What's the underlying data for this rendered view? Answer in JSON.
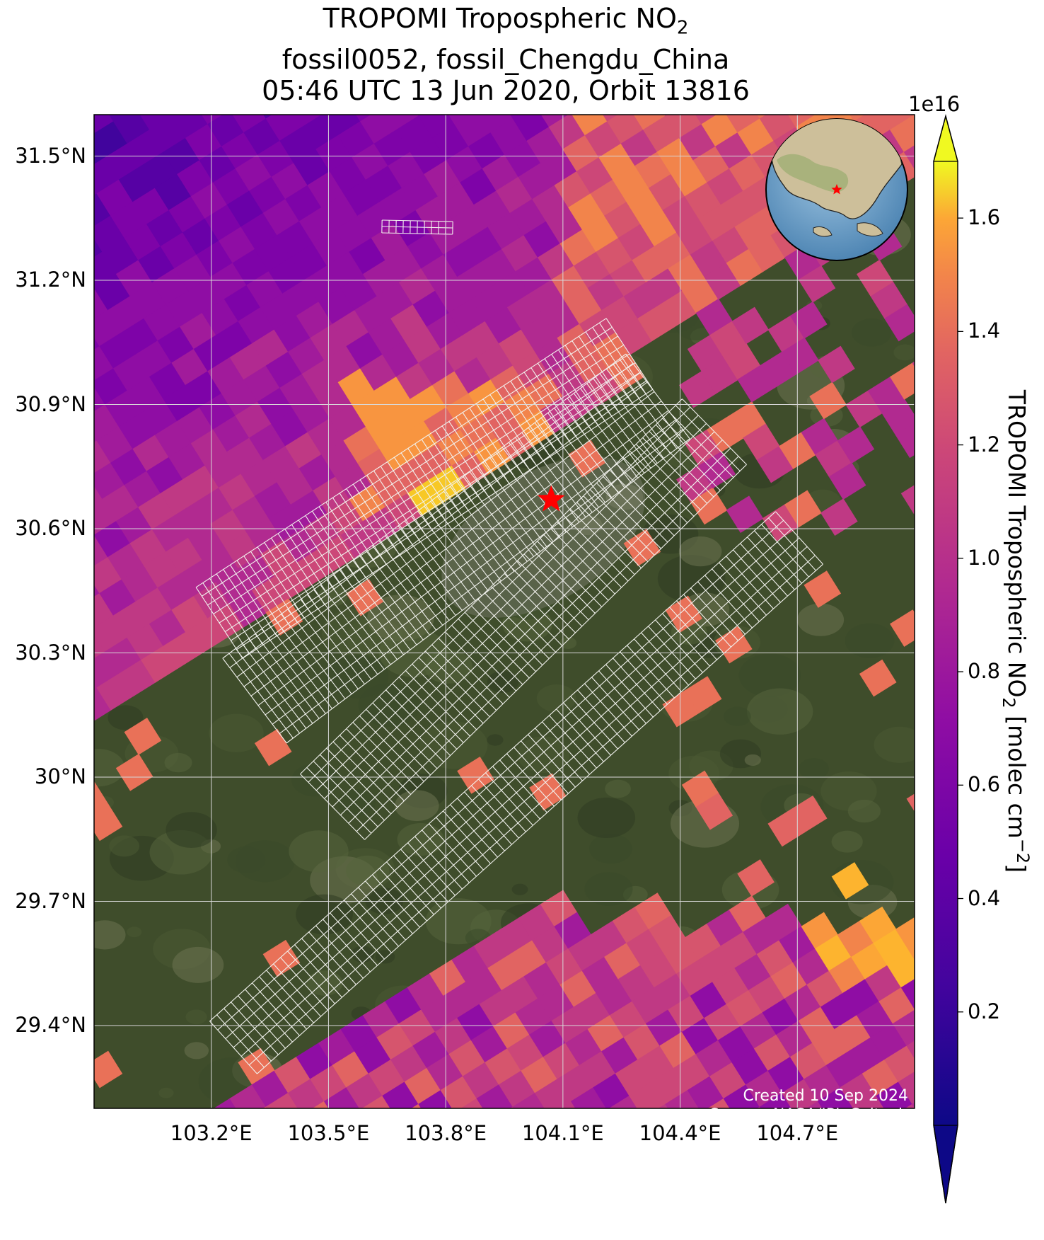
{
  "title": {
    "line1_prefix": "TROPOMI Tropospheric NO",
    "line1_sub": "2",
    "line2": "fossil0052, fossil_Chengdu_China",
    "line3": "05:46 UTC 13 Jun 2020, Orbit 13816"
  },
  "map": {
    "lon_range": [
      102.9,
      105.0
    ],
    "lat_range": [
      29.2,
      31.6
    ],
    "lon_ticks": [
      {
        "value": 103.2,
        "label": "103.2°E"
      },
      {
        "value": 103.5,
        "label": "103.5°E"
      },
      {
        "value": 103.8,
        "label": "103.8°E"
      },
      {
        "value": 104.1,
        "label": "104.1°E"
      },
      {
        "value": 104.4,
        "label": "104.4°E"
      },
      {
        "value": 104.7,
        "label": "104.7°E"
      }
    ],
    "lat_ticks": [
      {
        "value": 31.5,
        "label": "31.5°N"
      },
      {
        "value": 31.2,
        "label": "31.2°N"
      },
      {
        "value": 30.9,
        "label": "30.9°N"
      },
      {
        "value": 30.6,
        "label": "30.6°N"
      },
      {
        "value": 30.3,
        "label": "30.3°N"
      },
      {
        "value": 30.0,
        "label": "30°N"
      },
      {
        "value": 29.7,
        "label": "29.7°N"
      },
      {
        "value": 29.4,
        "label": "29.4°N"
      }
    ],
    "target_marker": {
      "lon": 104.07,
      "lat": 30.67,
      "icon": "red-star-icon",
      "color": "#ff0000"
    },
    "inset_globe": {
      "icon": "globe-icon",
      "marker_color": "#ff0000"
    },
    "gridline_color": "#d8d8d8"
  },
  "colorbar": {
    "label_prefix": "TROPOMI Tropospheric NO",
    "label_sub": "2",
    "label_mid": " [molec cm",
    "label_sup": "−2",
    "label_end": "]",
    "exponent": "1e16",
    "range": [
      0.0,
      1.7
    ],
    "ticks": [
      {
        "value": 0.2,
        "label": "0.2"
      },
      {
        "value": 0.4,
        "label": "0.4"
      },
      {
        "value": 0.6,
        "label": "0.6"
      },
      {
        "value": 0.8,
        "label": "0.8"
      },
      {
        "value": 1.0,
        "label": "1.0"
      },
      {
        "value": 1.2,
        "label": "1.2"
      },
      {
        "value": 1.4,
        "label": "1.4"
      },
      {
        "value": 1.6,
        "label": "1.6"
      }
    ],
    "colormap": "plasma",
    "extend": "both"
  },
  "credits": {
    "created": "Created 10 Sep 2024",
    "source": "Source: NASA/JPL-Caltech"
  }
}
